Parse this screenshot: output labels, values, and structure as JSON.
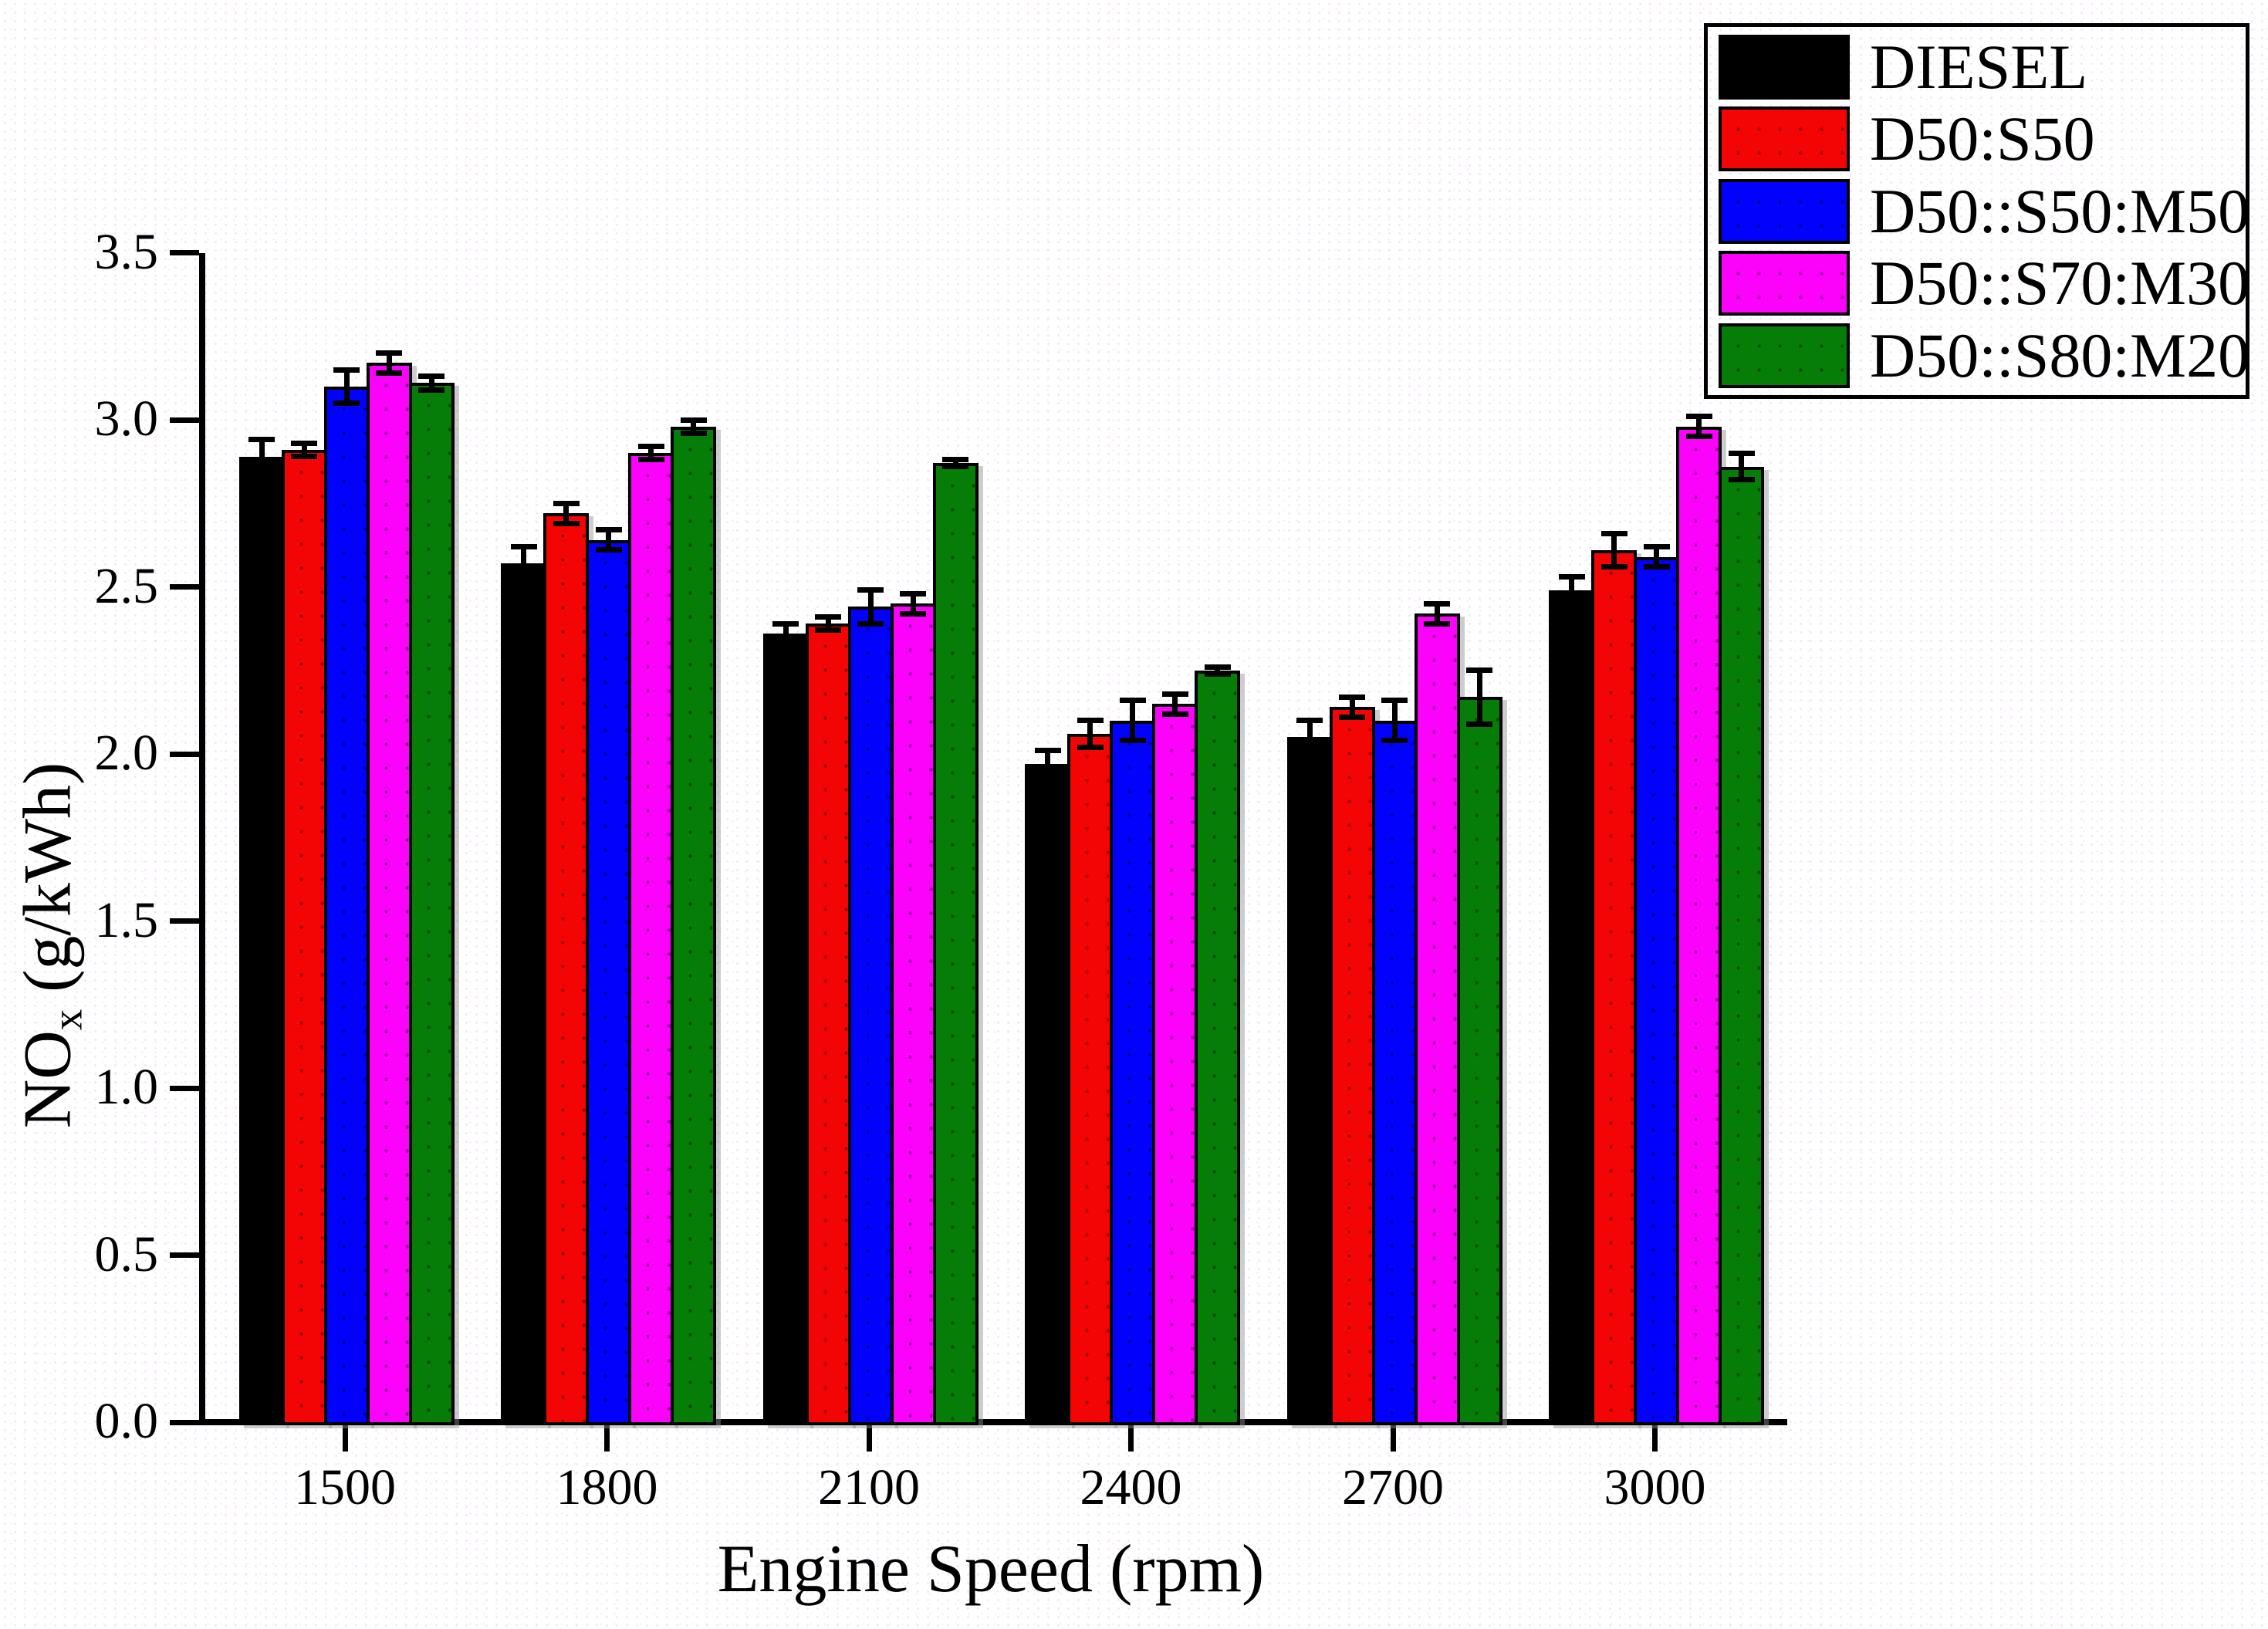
{
  "figure": {
    "background": "#ffffff",
    "axis_color": "#000000"
  },
  "chart_data": {
    "type": "bar",
    "title": "",
    "xlabel": "Engine Speed (rpm)",
    "ylabel": {
      "main": "NO",
      "sub": "x",
      "rest": " (g/kWh)"
    },
    "categories": [
      "1500",
      "1800",
      "2100",
      "2400",
      "2700",
      "3000"
    ],
    "yticks": [
      "0.0",
      "0.5",
      "1.0",
      "1.5",
      "2.0",
      "2.5",
      "3.0",
      "3.5"
    ],
    "ylim": [
      0.0,
      3.5
    ],
    "grid": false,
    "legend_position": "top-right",
    "error_bars": true,
    "series": [
      {
        "name": "DIESEL",
        "color": "#000000",
        "values": [
          2.89,
          2.57,
          2.36,
          1.97,
          2.05,
          2.49
        ],
        "errors": [
          0.05,
          0.05,
          0.03,
          0.04,
          0.05,
          0.04
        ]
      },
      {
        "name": "D50:S50",
        "color": "#f40505",
        "values": [
          2.91,
          2.72,
          2.39,
          2.06,
          2.14,
          2.61
        ],
        "errors": [
          0.02,
          0.03,
          0.02,
          0.04,
          0.03,
          0.05
        ]
      },
      {
        "name": "D50::S50:M50",
        "color": "#0202fc",
        "values": [
          3.1,
          2.64,
          2.44,
          2.1,
          2.1,
          2.59
        ],
        "errors": [
          0.05,
          0.03,
          0.05,
          0.06,
          0.06,
          0.03
        ]
      },
      {
        "name": "D50::S70:M30",
        "color": "#fb02fb",
        "values": [
          3.17,
          2.9,
          2.45,
          2.15,
          2.42,
          2.98
        ],
        "errors": [
          0.03,
          0.02,
          0.03,
          0.03,
          0.03,
          0.03
        ]
      },
      {
        "name": "D50::S80:M20",
        "color": "#067d06",
        "values": [
          3.11,
          2.98,
          2.87,
          2.25,
          2.17,
          2.86
        ],
        "errors": [
          0.02,
          0.02,
          0.01,
          0.01,
          0.08,
          0.04
        ]
      }
    ]
  }
}
